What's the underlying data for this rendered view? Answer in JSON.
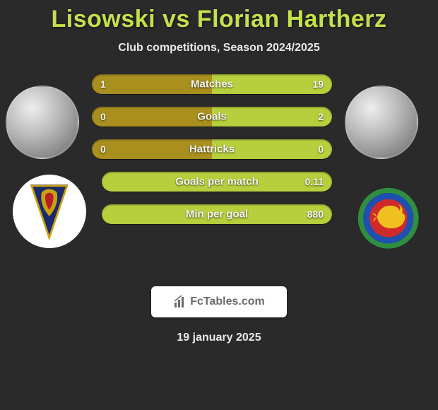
{
  "title": "Lisowski vs Florian Hartherz",
  "subtitle": "Club competitions, Season 2024/2025",
  "date": "19 january 2025",
  "branding": {
    "text": "FcTables.com"
  },
  "colors": {
    "title": "#c4e04a",
    "bar_dark": "#a98f1e",
    "bar_light": "#b8cf3d",
    "background": "#2a2a2a",
    "branding_bg": "#ffffff",
    "branding_text": "#6a6a6a"
  },
  "bars": [
    {
      "label": "Matches",
      "left": "1",
      "right": "19",
      "style": "split"
    },
    {
      "label": "Goals",
      "left": "0",
      "right": "2",
      "style": "split"
    },
    {
      "label": "Hattricks",
      "left": "0",
      "right": "0",
      "style": "split"
    },
    {
      "label": "Goals per match",
      "left": null,
      "right": "0.11",
      "style": "full"
    },
    {
      "label": "Min per goal",
      "left": null,
      "right": "880",
      "style": "full"
    }
  ],
  "club_left": {
    "pennant_fill": "#1a2a6b",
    "accent1": "#c9a10a",
    "accent2": "#b3202a"
  },
  "club_right": {
    "ring_outer": "#2f8f3f",
    "ring_inner": "#1f4fb0",
    "lion": "#f0c020",
    "center": "#d02a2a"
  }
}
